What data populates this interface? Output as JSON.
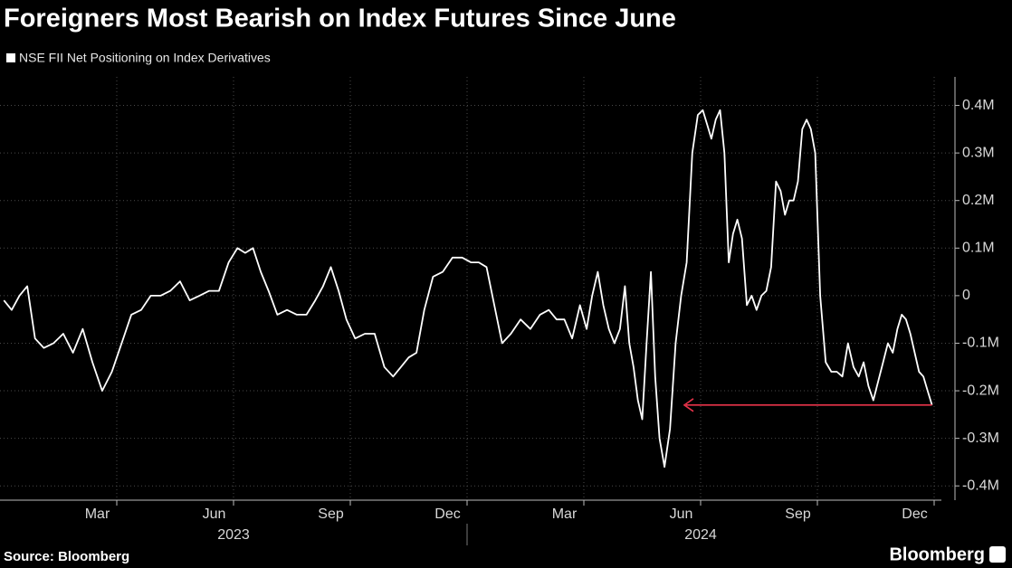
{
  "chart_data": {
    "type": "line",
    "title": "Foreigners Most Bearish on Index Futures Since June",
    "source": "Source: Bloomberg",
    "brand": "Bloomberg",
    "background": "#000000",
    "annotation_color": "#e8334a",
    "ylim": [
      -430000,
      460000
    ],
    "yticks": [
      {
        "value": 400000,
        "label": "0.4M"
      },
      {
        "value": 300000,
        "label": "0.3M"
      },
      {
        "value": 200000,
        "label": "0.2M"
      },
      {
        "value": 100000,
        "label": "0.1M"
      },
      0,
      {
        "value": -100000,
        "label": "-0.1M"
      },
      {
        "value": -200000,
        "label": "-0.2M"
      },
      {
        "value": -300000,
        "label": "-0.3M"
      },
      {
        "value": -400000,
        "label": "-0.4M"
      }
    ],
    "xticks": [
      {
        "value": "2023-03",
        "label": "Mar"
      },
      {
        "value": "2023-06",
        "label": "Jun"
      },
      {
        "value": "2023-09",
        "label": "Sep"
      },
      {
        "value": "2023-12",
        "label": "Dec"
      },
      {
        "value": "2024-03",
        "label": "Mar"
      },
      {
        "value": "2024-06",
        "label": "Jun"
      },
      {
        "value": "2024-09",
        "label": "Sep"
      },
      {
        "value": "2024-12",
        "label": "Dec"
      }
    ],
    "xyears": [
      "2023",
      "2024"
    ],
    "grid": true,
    "x": [
      "2023-01",
      "2023-01",
      "2023-01",
      "2023-01",
      "2023-01",
      "2023-02",
      "2023-02",
      "2023-02",
      "2023-02",
      "2023-03",
      "2023-03",
      "2023-03",
      "2023-03",
      "2023-04",
      "2023-04",
      "2023-04",
      "2023-04",
      "2023-05",
      "2023-05",
      "2023-05",
      "2023-05",
      "2023-06",
      "2023-06",
      "2023-06",
      "2023-06",
      "2023-07",
      "2023-07",
      "2023-07",
      "2023-07",
      "2023-07",
      "2023-08",
      "2023-08",
      "2023-08",
      "2023-08",
      "2023-09",
      "2023-09",
      "2023-09",
      "2023-09",
      "2023-09",
      "2023-10",
      "2023-10",
      "2023-10",
      "2023-10",
      "2023-11",
      "2023-11",
      "2023-11",
      "2023-11",
      "2023-11",
      "2023-12",
      "2023-12",
      "2023-12",
      "2023-12",
      "2024-01",
      "2024-01",
      "2024-01",
      "2024-01",
      "2024-01",
      "2024-02",
      "2024-02",
      "2024-02",
      "2024-02",
      "2024-03",
      "2024-03",
      "2024-03",
      "2024-03",
      "2024-03",
      "2024-04",
      "2024-04",
      "2024-04",
      "2024-04",
      "2024-04",
      "2024-04",
      "2024-04",
      "2024-05",
      "2024-05",
      "2024-05",
      "2024-05",
      "2024-05",
      "2024-05",
      "2024-05",
      "2024-05",
      "2024-05",
      "2024-06",
      "2024-06",
      "2024-06",
      "2024-06",
      "2024-06",
      "2024-06",
      "2024-06",
      "2024-07",
      "2024-07",
      "2024-07",
      "2024-07",
      "2024-07",
      "2024-07",
      "2024-07",
      "2024-07",
      "2024-07",
      "2024-08",
      "2024-08",
      "2024-08",
      "2024-08",
      "2024-08",
      "2024-08",
      "2024-08",
      "2024-08",
      "2024-09",
      "2024-09",
      "2024-09",
      "2024-09",
      "2024-09",
      "2024-09",
      "2024-09",
      "2024-09",
      "2024-09",
      "2024-10",
      "2024-10",
      "2024-10",
      "2024-10",
      "2024-10",
      "2024-10",
      "2024-10",
      "2024-11",
      "2024-11",
      "2024-11",
      "2024-11",
      "2024-11",
      "2024-11",
      "2024-11",
      "2024-11",
      "2024-12",
      "2024-12",
      "2024-12",
      "2024-12",
      "2024-12",
      "2024-12",
      "2024-12",
      "2024-12",
      "2024-12"
    ],
    "series": [
      {
        "name": "NSE FII Net Positioning on Index Derivatives",
        "color": "#ffffff",
        "values": [
          -10000,
          -30000,
          0,
          20000,
          -90000,
          -110000,
          -100000,
          -80000,
          -120000,
          -70000,
          -140000,
          -200000,
          -160000,
          -100000,
          -40000,
          -30000,
          0,
          0,
          10000,
          30000,
          -10000,
          0,
          10000,
          10000,
          70000,
          100000,
          90000,
          100000,
          50000,
          10000,
          -40000,
          -30000,
          -40000,
          -40000,
          -10000,
          20000,
          60000,
          10000,
          -50000,
          -90000,
          -80000,
          -80000,
          -150000,
          -170000,
          -150000,
          -130000,
          -120000,
          -30000,
          40000,
          50000,
          80000,
          80000,
          70000,
          70000,
          60000,
          -20000,
          -100000,
          -80000,
          -50000,
          -70000,
          -40000,
          -30000,
          -50000,
          -50000,
          -90000,
          -20000,
          -70000,
          0,
          50000,
          -20000,
          -70000,
          -100000,
          -70000,
          20000,
          -100000,
          -150000,
          -220000,
          -260000,
          -100000,
          50000,
          -170000,
          -300000,
          -360000,
          -280000,
          -100000,
          0,
          70000,
          300000,
          380000,
          390000,
          360000,
          330000,
          370000,
          390000,
          300000,
          70000,
          130000,
          160000,
          120000,
          -20000,
          0,
          -30000,
          0,
          10000,
          60000,
          240000,
          220000,
          170000,
          200000,
          200000,
          240000,
          350000,
          370000,
          350000,
          300000,
          0,
          -140000,
          -160000,
          -160000,
          -170000,
          -100000,
          -150000,
          -170000,
          -140000,
          -190000,
          -220000,
          -180000,
          -140000,
          -100000,
          -120000,
          -70000,
          -40000,
          -50000,
          -80000,
          -120000,
          -160000,
          -170000,
          -200000,
          -230000
        ]
      }
    ]
  }
}
